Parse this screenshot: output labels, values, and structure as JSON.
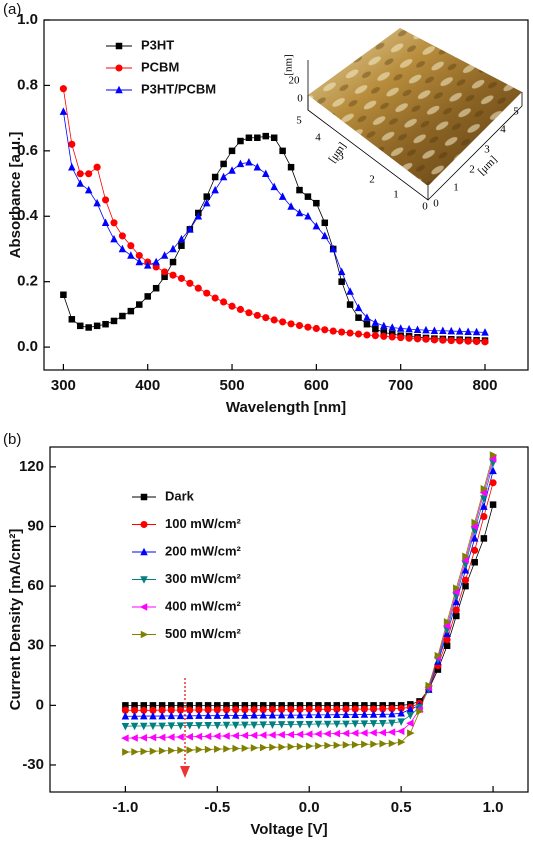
{
  "chart_data": [
    {
      "type": "line",
      "panel_label": "(a)",
      "xlabel": "Wavelength [nm]",
      "ylabel": "Absorbance [a.u.]",
      "x": [
        300,
        310,
        320,
        330,
        340,
        350,
        360,
        370,
        380,
        390,
        400,
        410,
        420,
        430,
        440,
        450,
        460,
        470,
        480,
        490,
        500,
        510,
        520,
        530,
        540,
        550,
        560,
        570,
        580,
        590,
        600,
        610,
        620,
        630,
        640,
        650,
        660,
        670,
        680,
        690,
        700,
        710,
        720,
        730,
        740,
        750,
        760,
        770,
        780,
        790,
        800
      ],
      "series": [
        {
          "name": "P3HT",
          "color": "#000000",
          "marker": "square",
          "values": [
            0.16,
            0.085,
            0.065,
            0.06,
            0.065,
            0.07,
            0.08,
            0.095,
            0.11,
            0.13,
            0.155,
            0.18,
            0.215,
            0.26,
            0.31,
            0.36,
            0.41,
            0.46,
            0.52,
            0.56,
            0.6,
            0.63,
            0.64,
            0.64,
            0.645,
            0.64,
            0.6,
            0.55,
            0.48,
            0.46,
            0.44,
            0.38,
            0.3,
            0.2,
            0.13,
            0.09,
            0.07,
            0.055,
            0.045,
            0.04,
            0.035,
            0.033,
            0.03,
            0.028,
            0.026,
            0.025,
            0.024,
            0.023,
            0.022,
            0.021,
            0.02
          ]
        },
        {
          "name": "PCBM",
          "color": "#ff0000",
          "marker": "circle",
          "values": [
            0.79,
            0.62,
            0.53,
            0.53,
            0.55,
            0.45,
            0.38,
            0.34,
            0.31,
            0.28,
            0.26,
            0.245,
            0.23,
            0.22,
            0.21,
            0.195,
            0.18,
            0.165,
            0.15,
            0.138,
            0.125,
            0.115,
            0.105,
            0.097,
            0.09,
            0.083,
            0.077,
            0.071,
            0.066,
            0.061,
            0.057,
            0.053,
            0.049,
            0.046,
            0.043,
            0.04,
            0.037,
            0.035,
            0.033,
            0.031,
            0.029,
            0.027,
            0.025,
            0.024,
            0.022,
            0.021,
            0.02,
            0.019,
            0.018,
            0.017,
            0.016
          ]
        },
        {
          "name": "P3HT/PCBM",
          "color": "#0000ff",
          "marker": "triangle-up",
          "values": [
            0.72,
            0.55,
            0.5,
            0.48,
            0.44,
            0.38,
            0.33,
            0.3,
            0.28,
            0.26,
            0.25,
            0.26,
            0.28,
            0.3,
            0.33,
            0.36,
            0.4,
            0.44,
            0.48,
            0.52,
            0.54,
            0.56,
            0.565,
            0.55,
            0.53,
            0.49,
            0.46,
            0.43,
            0.41,
            0.4,
            0.37,
            0.34,
            0.3,
            0.23,
            0.17,
            0.12,
            0.09,
            0.075,
            0.065,
            0.06,
            0.057,
            0.055,
            0.053,
            0.052,
            0.05,
            0.05,
            0.049,
            0.048,
            0.047,
            0.046,
            0.045
          ]
        }
      ],
      "xlim": [
        277,
        851
      ],
      "xticks": [
        300,
        400,
        500,
        600,
        700,
        800
      ],
      "ylim": [
        -0.07,
        1.0
      ],
      "yticks": [
        {
          "value": 0,
          "label": "0.0"
        },
        0.2,
        0.4,
        0.6,
        0.8,
        {
          "value": 1,
          "label": "1.0"
        }
      ],
      "legend": "upper-left",
      "inset_labels": [
        "[nm]",
        "20",
        "0",
        "5",
        "4",
        "3",
        "[μm]",
        "2",
        "1",
        "0",
        "0",
        "1",
        "2",
        "3",
        "4",
        "5",
        "[μm]"
      ]
    },
    {
      "type": "line",
      "panel_label": "(b)",
      "xlabel": "Voltage [V]",
      "ylabel": "Current Density [mA/cm²]",
      "x": [
        -1,
        -0.95,
        -0.9,
        -0.85,
        -0.8,
        -0.75,
        -0.7,
        -0.65,
        -0.6,
        -0.55,
        -0.5,
        -0.45,
        -0.4,
        -0.35,
        -0.3,
        -0.25,
        -0.2,
        -0.15,
        -0.1,
        -0.05,
        0,
        0.05,
        0.1,
        0.15,
        0.2,
        0.25,
        0.3,
        0.35,
        0.4,
        0.45,
        0.5,
        0.55,
        0.6,
        0.65,
        0.7,
        0.75,
        0.8,
        0.85,
        0.9,
        0.95,
        1
      ],
      "series": [
        {
          "name": "Dark",
          "color": "#000000",
          "marker": "square",
          "values": [
            0,
            0,
            0,
            0,
            0,
            0,
            0,
            0,
            0,
            0,
            0,
            0,
            0,
            0,
            0,
            0,
            0,
            0,
            0,
            0,
            0,
            0,
            0,
            0,
            0,
            0,
            0,
            0,
            0,
            0,
            0,
            0.5,
            2,
            8,
            18,
            30,
            45,
            60,
            72,
            84,
            101
          ]
        },
        {
          "name": "100 mW/cm²",
          "color": "#ff0000",
          "marker": "circle",
          "values": [
            -2.5,
            -2.5,
            -2.5,
            -2.5,
            -2.4,
            -2.4,
            -2.4,
            -2.4,
            -2.3,
            -2.3,
            -2.3,
            -2.3,
            -2.2,
            -2.2,
            -2.2,
            -2.2,
            -2.1,
            -2.1,
            -2.1,
            -2.1,
            -2.0,
            -2.0,
            -2.0,
            -2.0,
            -1.9,
            -1.9,
            -1.9,
            -1.9,
            -1.8,
            -1.7,
            -1.5,
            -1,
            1,
            8,
            20,
            33,
            48,
            63,
            78,
            95,
            112
          ]
        },
        {
          "name": "200 mW/cm²",
          "color": "#0000ff",
          "marker": "triangle-up",
          "values": [
            -5.5,
            -5.5,
            -5.4,
            -5.4,
            -5.4,
            -5.3,
            -5.3,
            -5.3,
            -5.2,
            -5.2,
            -5.2,
            -5.1,
            -5.1,
            -5.1,
            -5.0,
            -5.0,
            -5.0,
            -4.9,
            -4.9,
            -4.9,
            -4.8,
            -4.8,
            -4.8,
            -4.7,
            -4.7,
            -4.7,
            -4.6,
            -4.6,
            -4.5,
            -4.4,
            -4.0,
            -2,
            0,
            8,
            22,
            36,
            52,
            68,
            84,
            100,
            118
          ]
        },
        {
          "name": "300 mW/cm²",
          "color": "#008080",
          "marker": "triangle-down",
          "values": [
            -10.5,
            -10.4,
            -10.4,
            -10.3,
            -10.3,
            -10.2,
            -10.2,
            -10.1,
            -10.1,
            -10.0,
            -10.0,
            -9.9,
            -9.9,
            -9.8,
            -9.8,
            -9.7,
            -9.7,
            -9.6,
            -9.6,
            -9.5,
            -9.5,
            -9.4,
            -9.4,
            -9.3,
            -9.3,
            -9.2,
            -9.2,
            -9.1,
            -9.0,
            -8.8,
            -8.2,
            -5,
            -1,
            8,
            23,
            38,
            55,
            71,
            88,
            104,
            122
          ]
        },
        {
          "name": "400 mW/cm²",
          "color": "#ff00ff",
          "marker": "triangle-left",
          "values": [
            -16.5,
            -16.4,
            -16.3,
            -16.2,
            -16.1,
            -16.0,
            -15.9,
            -15.8,
            -15.7,
            -15.6,
            -15.5,
            -15.4,
            -15.3,
            -15.2,
            -15.1,
            -15.0,
            -14.9,
            -14.8,
            -14.7,
            -14.6,
            -14.5,
            -14.4,
            -14.3,
            -14.2,
            -14.1,
            -14.0,
            -13.9,
            -13.8,
            -13.7,
            -13.5,
            -13.0,
            -9,
            -2,
            9,
            24,
            40,
            57,
            73,
            90,
            107,
            124
          ]
        },
        {
          "name": "500 mW/cm²",
          "color": "#808000",
          "marker": "triangle-right",
          "values": [
            -23.5,
            -23.4,
            -23.2,
            -23.1,
            -22.9,
            -22.8,
            -22.6,
            -22.5,
            -22.3,
            -22.2,
            -22.0,
            -21.9,
            -21.7,
            -21.6,
            -21.4,
            -21.3,
            -21.1,
            -21.0,
            -20.8,
            -20.7,
            -20.5,
            -20.4,
            -20.2,
            -20.1,
            -19.9,
            -19.8,
            -19.6,
            -19.5,
            -19.3,
            -19.2,
            -18.5,
            -14,
            -3,
            10,
            25,
            42,
            59,
            75,
            92,
            109,
            126
          ]
        }
      ],
      "xlim": [
        -1.41,
        1.19
      ],
      "xticks": [
        {
          "value": -1,
          "label": "-1.0"
        },
        -0.5,
        {
          "value": 0,
          "label": "0.0"
        },
        0.5,
        {
          "value": 1,
          "label": "1.0"
        }
      ],
      "ylim": [
        -43.6,
        130
      ],
      "yticks": [
        -30,
        0,
        30,
        60,
        90,
        120
      ],
      "legend": "upper-left"
    }
  ]
}
